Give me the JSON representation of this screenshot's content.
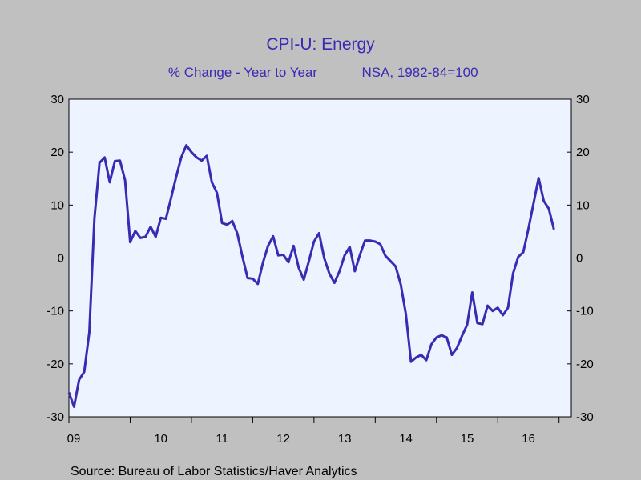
{
  "chart_data": {
    "type": "line",
    "title": "CPI-U: Energy",
    "subtitle_left": "% Change - Year to Year",
    "subtitle_right": "NSA, 1982-84=100",
    "source": "Source:  Bureau of Labor Statistics/Haver Analytics",
    "ylim": [
      -30,
      30
    ],
    "yticks": [
      "30",
      "20",
      "10",
      "0",
      "-10",
      "-20",
      "-30"
    ],
    "x_start_year": 2009,
    "x_end_year": 2017.2,
    "xtick_labels": [
      "09",
      "10",
      "11",
      "12",
      "13",
      "14",
      "15",
      "16"
    ],
    "grid": false,
    "zero_line": true,
    "colors": {
      "background": "#c0c0c0",
      "plot_background": "#eef4ff",
      "line": "#3a2ab4",
      "title": "#3a2ab4"
    },
    "series": [
      {
        "values": [
          -25.4,
          -28.1,
          -23.0,
          -21.5,
          -14.0,
          7.5,
          18.0,
          19.0,
          14.3,
          18.3,
          18.4,
          14.7,
          3.0,
          5.1,
          3.8,
          4.0,
          5.9,
          4.0,
          7.6,
          7.4,
          11.3,
          15.3,
          19.0,
          21.3,
          20.0,
          19.0,
          18.4,
          19.3,
          14.3,
          12.3,
          6.6,
          6.3,
          7.0,
          4.6,
          0.2,
          -3.8,
          -3.9,
          -4.9,
          -0.9,
          2.3,
          4.1,
          0.5,
          0.6,
          -0.8,
          2.3,
          -1.8,
          -4.1,
          -0.6,
          3.1,
          4.7,
          0.0,
          -2.9,
          -4.7,
          -2.5,
          0.5,
          2.1,
          -2.5,
          0.6,
          3.3,
          3.3,
          3.1,
          2.6,
          0.4,
          -0.6,
          -1.6,
          -5.0,
          -10.6,
          -19.6,
          -18.8,
          -18.3,
          -19.3,
          -16.3,
          -15.0,
          -14.6,
          -15.0,
          -18.3,
          -17.0,
          -14.7,
          -12.6,
          -6.5,
          -12.3,
          -12.5,
          -9.0,
          -10.0,
          -9.4,
          -10.8,
          -9.4,
          -2.9,
          0.2,
          1.1,
          5.5,
          10.3,
          15.1,
          10.8,
          9.3,
          5.4
        ]
      }
    ]
  }
}
